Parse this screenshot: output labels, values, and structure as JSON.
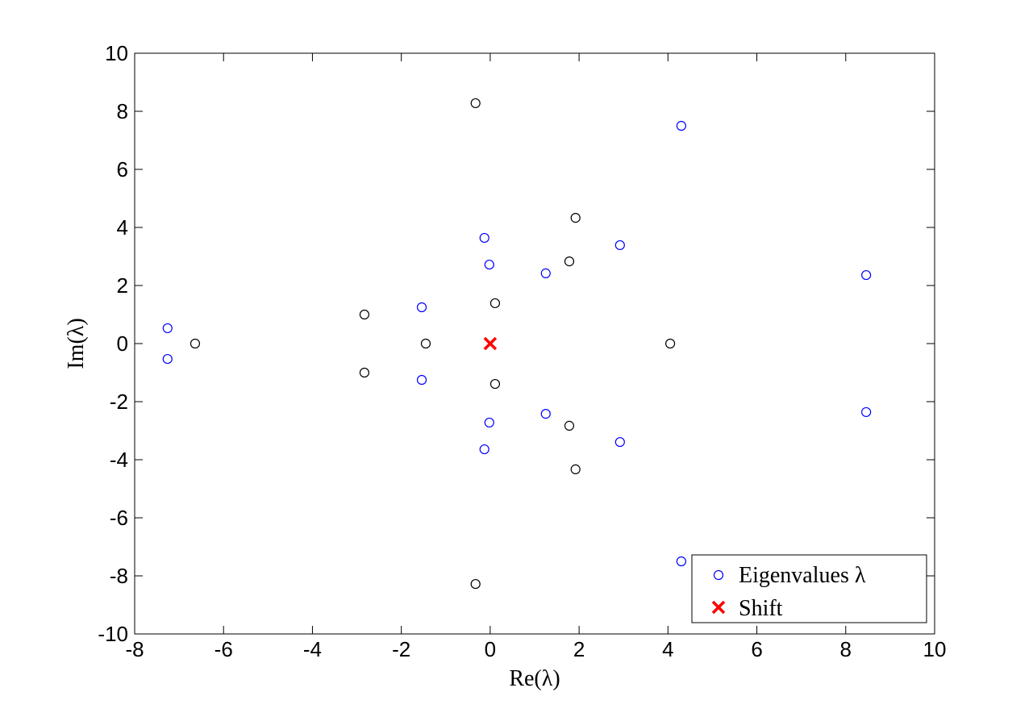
{
  "chart_data": {
    "type": "scatter",
    "title": "",
    "xlabel": "Re(λ)",
    "ylabel": "Im(λ)",
    "xlim": [
      -8,
      10
    ],
    "ylim": [
      -10,
      10
    ],
    "xticks": [
      -8,
      -6,
      -4,
      -2,
      0,
      2,
      4,
      6,
      8,
      10
    ],
    "yticks": [
      -10,
      -8,
      -6,
      -4,
      -2,
      0,
      2,
      4,
      6,
      8,
      10
    ],
    "grid": false,
    "legend_placement": "bottom-right",
    "series": [
      {
        "marker": "circle",
        "color": "#000000",
        "points": [
          [
            -0.33,
            8.28
          ],
          [
            -0.33,
            -8.28
          ],
          [
            1.92,
            4.33
          ],
          [
            1.92,
            -4.33
          ],
          [
            1.78,
            2.83
          ],
          [
            1.78,
            -2.83
          ],
          [
            0.11,
            1.39
          ],
          [
            0.11,
            -1.39
          ],
          [
            -2.83,
            1.0
          ],
          [
            -2.83,
            -1.0
          ],
          [
            -1.45,
            0
          ],
          [
            -6.64,
            0
          ],
          [
            4.05,
            0
          ]
        ]
      },
      {
        "name": "Eigenvalues λ",
        "marker": "circle",
        "color": "#0000ff",
        "points": [
          [
            4.3,
            7.5
          ],
          [
            4.3,
            -7.5
          ],
          [
            8.46,
            2.36
          ],
          [
            8.46,
            -2.36
          ],
          [
            2.92,
            3.39
          ],
          [
            2.92,
            -3.39
          ],
          [
            1.25,
            2.42
          ],
          [
            1.25,
            -2.42
          ],
          [
            -0.13,
            3.64
          ],
          [
            -0.13,
            -3.64
          ],
          [
            -0.02,
            2.72
          ],
          [
            -0.02,
            -2.72
          ],
          [
            -1.54,
            1.25
          ],
          [
            -1.54,
            -1.25
          ],
          [
            -7.26,
            0.53
          ],
          [
            -7.26,
            -0.53
          ]
        ]
      },
      {
        "name": "Shift",
        "marker": "x",
        "color": "#ff0000",
        "points": [
          [
            0,
            0
          ]
        ]
      }
    ],
    "legend": [
      "Eigenvalues λ",
      "Shift"
    ]
  }
}
